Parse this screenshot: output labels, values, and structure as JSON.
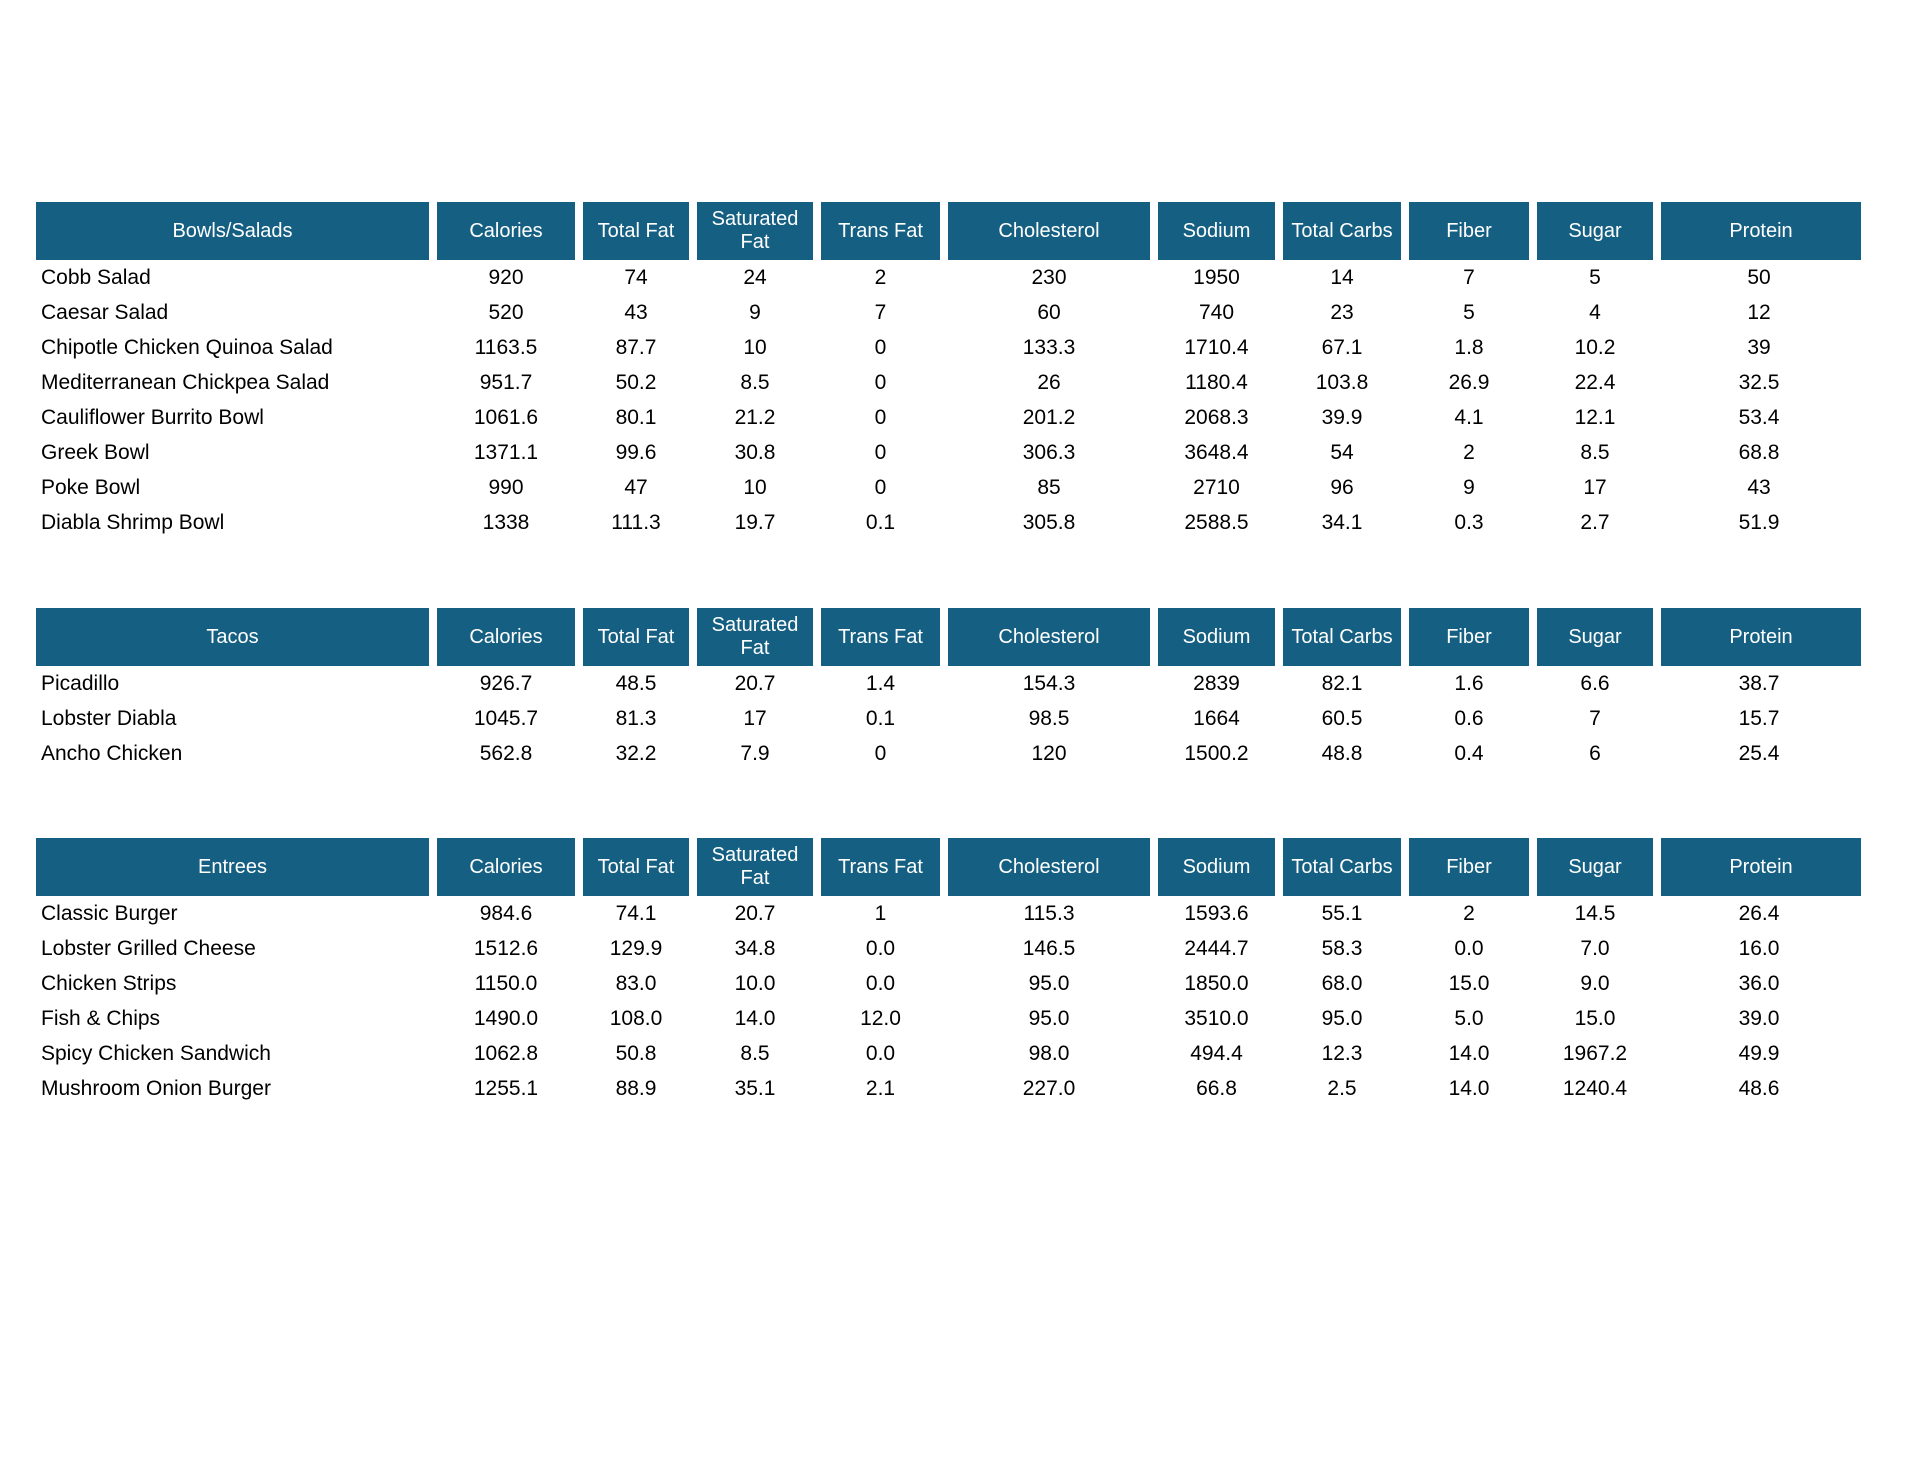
{
  "colors": {
    "header_background": "#156082",
    "header_text": "#ffffff",
    "body_text": "#000000",
    "page_background": "#ffffff"
  },
  "columns": [
    "Calories",
    "Total Fat",
    "Saturated Fat",
    "Trans Fat",
    "Cholesterol",
    "Sodium",
    "Total Carbs",
    "Fiber",
    "Sugar",
    "Protein"
  ],
  "tables": [
    {
      "title": "Bowls/Salads",
      "rows": [
        {
          "name": "Cobb Salad",
          "values": [
            "920",
            "74",
            "24",
            "2",
            "230",
            "1950",
            "14",
            "7",
            "5",
            "50"
          ]
        },
        {
          "name": "Caesar Salad",
          "values": [
            "520",
            "43",
            "9",
            "7",
            "60",
            "740",
            "23",
            "5",
            "4",
            "12"
          ]
        },
        {
          "name": "Chipotle Chicken Quinoa Salad",
          "values": [
            "1163.5",
            "87.7",
            "10",
            "0",
            "133.3",
            "1710.4",
            "67.1",
            "1.8",
            "10.2",
            "39"
          ]
        },
        {
          "name": "Mediterranean Chickpea Salad",
          "values": [
            "951.7",
            "50.2",
            "8.5",
            "0",
            "26",
            "1180.4",
            "103.8",
            "26.9",
            "22.4",
            "32.5"
          ]
        },
        {
          "name": "Cauliflower Burrito Bowl",
          "values": [
            "1061.6",
            "80.1",
            "21.2",
            "0",
            "201.2",
            "2068.3",
            "39.9",
            "4.1",
            "12.1",
            "53.4"
          ]
        },
        {
          "name": "Greek Bowl",
          "values": [
            "1371.1",
            "99.6",
            "30.8",
            "0",
            "306.3",
            "3648.4",
            "54",
            "2",
            "8.5",
            "68.8"
          ]
        },
        {
          "name": "Poke Bowl",
          "values": [
            "990",
            "47",
            "10",
            "0",
            "85",
            "2710",
            "96",
            "9",
            "17",
            "43"
          ]
        },
        {
          "name": "Diabla Shrimp Bowl",
          "values": [
            "1338",
            "111.3",
            "19.7",
            "0.1",
            "305.8",
            "2588.5",
            "34.1",
            "0.3",
            "2.7",
            "51.9"
          ]
        }
      ]
    },
    {
      "title": "Tacos",
      "rows": [
        {
          "name": "Picadillo",
          "values": [
            "926.7",
            "48.5",
            "20.7",
            "1.4",
            "154.3",
            "2839",
            "82.1",
            "1.6",
            "6.6",
            "38.7"
          ]
        },
        {
          "name": "Lobster Diabla",
          "values": [
            "1045.7",
            "81.3",
            "17",
            "0.1",
            "98.5",
            "1664",
            "60.5",
            "0.6",
            "7",
            "15.7"
          ]
        },
        {
          "name": "Ancho Chicken",
          "values": [
            "562.8",
            "32.2",
            "7.9",
            "0",
            "120",
            "1500.2",
            "48.8",
            "0.4",
            "6",
            "25.4"
          ]
        }
      ]
    },
    {
      "title": "Entrees",
      "rows": [
        {
          "name": "Classic Burger",
          "values": [
            "984.6",
            "74.1",
            "20.7",
            "1",
            "115.3",
            "1593.6",
            "55.1",
            "2",
            "14.5",
            "26.4"
          ]
        },
        {
          "name": "Lobster Grilled Cheese",
          "values": [
            "1512.6",
            "129.9",
            "34.8",
            "0.0",
            "146.5",
            "2444.7",
            "58.3",
            "0.0",
            "7.0",
            "16.0"
          ]
        },
        {
          "name": "Chicken Strips",
          "values": [
            "1150.0",
            "83.0",
            "10.0",
            "0.0",
            "95.0",
            "1850.0",
            "68.0",
            "15.0",
            "9.0",
            "36.0"
          ]
        },
        {
          "name": "Fish & Chips",
          "values": [
            "1490.0",
            "108.0",
            "14.0",
            "12.0",
            "95.0",
            "3510.0",
            "95.0",
            "5.0",
            "15.0",
            "39.0"
          ]
        },
        {
          "name": "Spicy Chicken Sandwich",
          "values": [
            "1062.8",
            "50.8",
            "8.5",
            "0.0",
            "98.0",
            "494.4",
            "12.3",
            "14.0",
            "1967.2",
            "49.9"
          ]
        },
        {
          "name": "Mushroom Onion Burger",
          "values": [
            "1255.1",
            "88.9",
            "35.1",
            "2.1",
            "227.0",
            "66.8",
            "2.5",
            "14.0",
            "1240.4",
            "48.6"
          ]
        }
      ]
    }
  ]
}
